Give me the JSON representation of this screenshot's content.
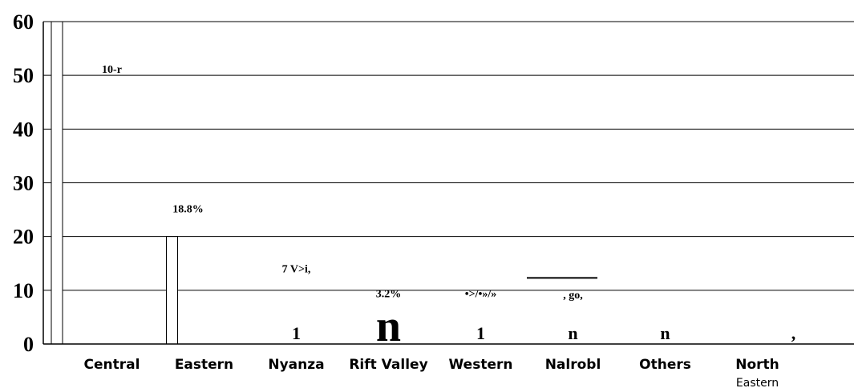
{
  "chart_data": {
    "type": "bar",
    "categories": [
      {
        "line1": "Central",
        "line2": ""
      },
      {
        "line1": "Eastern",
        "line2": ""
      },
      {
        "line1": "Nyanza",
        "line2": ""
      },
      {
        "line1": "Rift Valley",
        "line2": ""
      },
      {
        "line1": "Western",
        "line2": ""
      },
      {
        "line1": "Nalrobl",
        "line2": ""
      },
      {
        "line1": "Others",
        "line2": ""
      },
      {
        "line1": "North",
        "line2": "Eastern"
      }
    ],
    "values": [
      60,
      20,
      null,
      null,
      null,
      null,
      null,
      null
    ],
    "ylim": [
      0,
      60
    ],
    "yticks": [
      "0",
      "10",
      "20",
      "30",
      "40",
      "50",
      "60"
    ],
    "grid": true,
    "data_labels": [
      {
        "text": "10-r",
        "category": 0,
        "y": 50.5
      },
      {
        "text": "18.8%",
        "category": 1,
        "y": 24.5
      },
      {
        "text": "7 V>i,",
        "category": 2,
        "y": 13.3
      },
      {
        "text": "3.2%",
        "category": 3,
        "y": 8.7
      },
      {
        "text": "•>/•»/»",
        "category": 4,
        "y": 8.7
      },
      {
        "text": ", go,",
        "category": 5,
        "y": 8.5
      }
    ],
    "artifacts": [
      {
        "text": "1",
        "category": 2,
        "size": "medium"
      },
      {
        "text": "n",
        "category": 3,
        "size": "large"
      },
      {
        "text": "1",
        "category": 4,
        "size": "medium"
      },
      {
        "text": "n",
        "category": 5,
        "size": "medium"
      },
      {
        "text": "n",
        "category": 6,
        "size": "medium"
      },
      {
        "text": ",",
        "category": 7,
        "size": "medium"
      }
    ]
  }
}
